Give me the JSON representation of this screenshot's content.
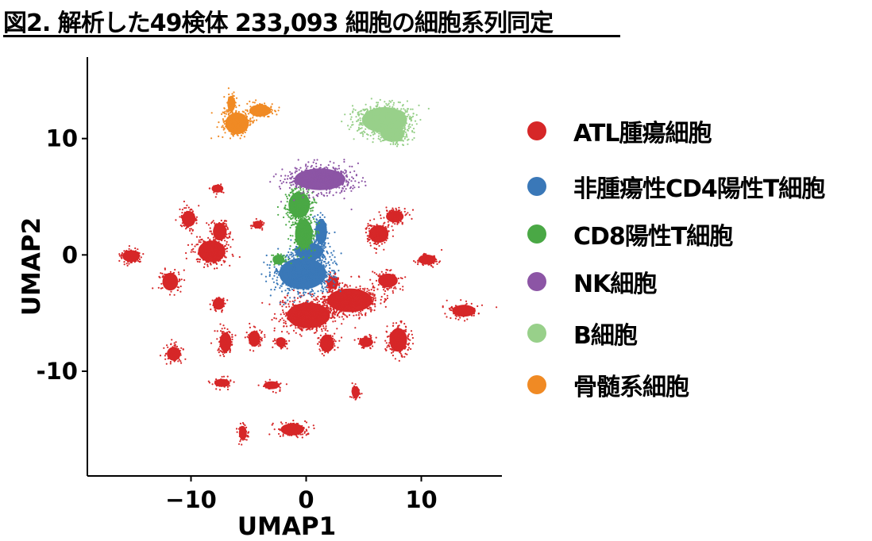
{
  "figure": {
    "title": "図2. 解析した49検体 233,093 細胞の細胞系列同定"
  },
  "chart_data": {
    "type": "scatter",
    "xlabel": "UMAP1",
    "ylabel": "UMAP2",
    "xlim": [
      -19,
      17
    ],
    "ylim": [
      -19,
      17
    ],
    "xticks": [
      -10,
      0,
      10
    ],
    "xtick_labels": [
      "−10",
      "0",
      "10"
    ],
    "yticks": [
      10,
      0,
      -10
    ],
    "ytick_labels": [
      "10",
      "0",
      "-10"
    ],
    "grid": false,
    "legend_position": "right",
    "series": [
      {
        "name": "ATL腫瘍細胞",
        "color": "#d62728",
        "clusters": [
          {
            "x": -15.2,
            "y": -0.1,
            "rx": 0.9,
            "ry": 0.6
          },
          {
            "x": -11.8,
            "y": -2.3,
            "rx": 0.8,
            "ry": 0.9
          },
          {
            "x": -10.2,
            "y": 3.1,
            "rx": 0.7,
            "ry": 0.8
          },
          {
            "x": -7.7,
            "y": 5.7,
            "rx": 0.6,
            "ry": 0.4
          },
          {
            "x": -8.2,
            "y": 0.3,
            "rx": 1.4,
            "ry": 1.1
          },
          {
            "x": -7.5,
            "y": 2.0,
            "rx": 0.7,
            "ry": 0.9
          },
          {
            "x": -4.2,
            "y": 2.6,
            "rx": 0.5,
            "ry": 0.4
          },
          {
            "x": -7.6,
            "y": -4.2,
            "rx": 0.6,
            "ry": 0.6
          },
          {
            "x": -11.5,
            "y": -8.5,
            "rx": 0.7,
            "ry": 0.7
          },
          {
            "x": -7.0,
            "y": -7.5,
            "rx": 0.6,
            "ry": 1.0
          },
          {
            "x": -4.5,
            "y": -7.2,
            "rx": 0.6,
            "ry": 0.8
          },
          {
            "x": -7.3,
            "y": -11.0,
            "rx": 0.8,
            "ry": 0.4
          },
          {
            "x": -3.0,
            "y": -11.2,
            "rx": 0.8,
            "ry": 0.4
          },
          {
            "x": -5.5,
            "y": -15.3,
            "rx": 0.4,
            "ry": 0.7
          },
          {
            "x": -1.2,
            "y": -15.0,
            "rx": 1.2,
            "ry": 0.6
          },
          {
            "x": -2.2,
            "y": -7.5,
            "rx": 0.5,
            "ry": 0.5
          },
          {
            "x": 0.2,
            "y": -5.2,
            "rx": 2.2,
            "ry": 1.3
          },
          {
            "x": 1.8,
            "y": -7.6,
            "rx": 0.7,
            "ry": 0.9
          },
          {
            "x": 3.8,
            "y": -3.9,
            "rx": 2.3,
            "ry": 1.2
          },
          {
            "x": 6.3,
            "y": 1.8,
            "rx": 1.0,
            "ry": 0.9
          },
          {
            "x": 7.7,
            "y": 3.3,
            "rx": 0.9,
            "ry": 0.6
          },
          {
            "x": 7.1,
            "y": -2.2,
            "rx": 1.0,
            "ry": 0.7
          },
          {
            "x": 10.5,
            "y": -0.4,
            "rx": 0.9,
            "ry": 0.5
          },
          {
            "x": 13.7,
            "y": -4.8,
            "rx": 1.2,
            "ry": 0.6
          },
          {
            "x": 8.0,
            "y": -7.3,
            "rx": 0.9,
            "ry": 1.2
          },
          {
            "x": 5.2,
            "y": -7.5,
            "rx": 0.7,
            "ry": 0.5
          },
          {
            "x": 4.3,
            "y": -11.8,
            "rx": 0.4,
            "ry": 0.6
          },
          {
            "x": 2.3,
            "y": -2.4,
            "rx": 0.6,
            "ry": 0.6
          }
        ]
      },
      {
        "name": "非腫瘍性CD4陽性T細胞",
        "color": "#3a78b8",
        "clusters": [
          {
            "x": -0.3,
            "y": -1.6,
            "rx": 2.4,
            "ry": 1.6
          },
          {
            "x": 0.3,
            "y": 0.3,
            "rx": 1.4,
            "ry": 0.9
          },
          {
            "x": 1.3,
            "y": 2.0,
            "rx": 0.6,
            "ry": 1.3
          }
        ]
      },
      {
        "name": "CD8陽性T細胞",
        "color": "#4aa845",
        "clusters": [
          {
            "x": -0.6,
            "y": 4.3,
            "rx": 1.1,
            "ry": 1.3
          },
          {
            "x": -0.2,
            "y": 1.8,
            "rx": 0.9,
            "ry": 1.5
          },
          {
            "x": -2.4,
            "y": -0.4,
            "rx": 0.6,
            "ry": 0.5
          }
        ]
      },
      {
        "name": "NK細胞",
        "color": "#8c55a5",
        "clusters": [
          {
            "x": 1.2,
            "y": 6.5,
            "rx": 2.6,
            "ry": 1.1
          }
        ]
      },
      {
        "name": "B細胞",
        "color": "#98d08a",
        "clusters": [
          {
            "x": 6.8,
            "y": 11.6,
            "rx": 2.3,
            "ry": 1.3
          },
          {
            "x": 7.5,
            "y": 10.4,
            "rx": 1.2,
            "ry": 0.8
          }
        ]
      },
      {
        "name": "骨髄系細胞",
        "color": "#f08a24",
        "clusters": [
          {
            "x": -6.0,
            "y": 11.3,
            "rx": 1.2,
            "ry": 1.1
          },
          {
            "x": -4.0,
            "y": 12.4,
            "rx": 1.1,
            "ry": 0.6
          },
          {
            "x": -6.5,
            "y": 13.0,
            "rx": 0.4,
            "ry": 0.8
          }
        ]
      }
    ]
  }
}
